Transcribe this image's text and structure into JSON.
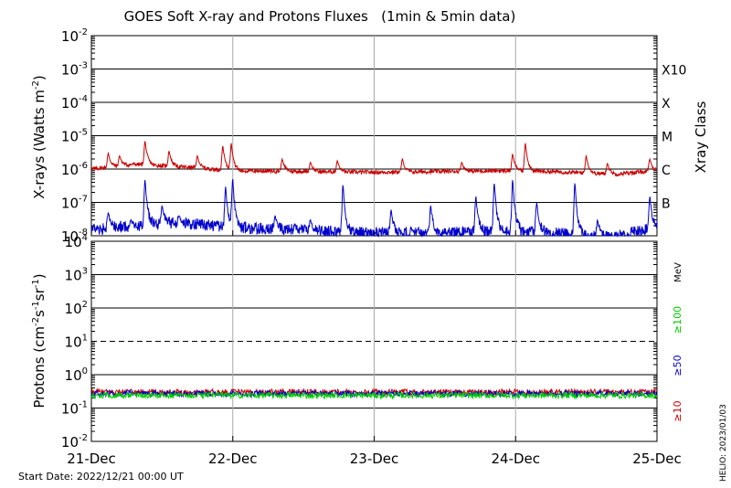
{
  "title": "GOES Soft X-ray and Protons Fluxes   (1min & 5min data)",
  "start_date": "Start Date: 2022/12/21 00:00 UT",
  "helio_stamp": "HELIO: 2023/01/03",
  "date_ticks": [
    "21-Dec",
    "22-Dec",
    "23-Dec",
    "24-Dec",
    "25-Dec"
  ],
  "chart_data": [
    {
      "type": "line",
      "panel": "xrays",
      "ylabel_main": "X-rays (Watts m",
      "ylabel_sup": "-2",
      "ylabel_tail": ")",
      "right_label": "Xray Class",
      "yscale": "log",
      "ylim_exp": [
        -8,
        -2
      ],
      "ytick_exps": [
        -2,
        -3,
        -4,
        -5,
        -6,
        -7,
        -8
      ],
      "class_labels": [
        {
          "label": "X10",
          "exp": -3
        },
        {
          "label": "X",
          "exp": -4
        },
        {
          "label": "M",
          "exp": -5
        },
        {
          "label": "C",
          "exp": -6
        },
        {
          "label": "B",
          "exp": -7
        }
      ],
      "xlim_days": [
        0,
        4
      ],
      "series": [
        {
          "color": "#cc0000",
          "baseline": [
            [
              0,
              1e-06
            ],
            [
              0.3,
              1.4e-06
            ],
            [
              0.6,
              1.2e-06
            ],
            [
              1.0,
              9e-07
            ],
            [
              1.5,
              8.5e-07
            ],
            [
              2.0,
              8e-07
            ],
            [
              2.5,
              8.5e-07
            ],
            [
              3.0,
              9e-07
            ],
            [
              3.4,
              8e-07
            ],
            [
              3.7,
              7e-07
            ],
            [
              4.0,
              9e-07
            ]
          ],
          "peaks": [
            [
              0.12,
              3e-06
            ],
            [
              0.2,
              2.5e-06
            ],
            [
              0.38,
              7e-06
            ],
            [
              0.55,
              3.5e-06
            ],
            [
              0.75,
              2.5e-06
            ],
            [
              0.93,
              5e-06
            ],
            [
              0.99,
              6e-06
            ],
            [
              1.35,
              2e-06
            ],
            [
              1.55,
              1.6e-06
            ],
            [
              1.74,
              1.8e-06
            ],
            [
              2.2,
              2e-06
            ],
            [
              2.62,
              1.6e-06
            ],
            [
              2.98,
              2.8e-06
            ],
            [
              3.07,
              6e-06
            ],
            [
              3.5,
              2.5e-06
            ],
            [
              3.65,
              1.5e-06
            ],
            [
              3.95,
              2e-06
            ]
          ]
        },
        {
          "color": "#0000cc",
          "baseline": [
            [
              0,
              1.5e-08
            ],
            [
              0.3,
              2e-08
            ],
            [
              0.6,
              2.5e-08
            ],
            [
              1.0,
              1.8e-08
            ],
            [
              1.5,
              1.5e-08
            ],
            [
              2.0,
              1.2e-08
            ],
            [
              2.5,
              1.3e-08
            ],
            [
              3.0,
              1.4e-08
            ],
            [
              3.4,
              1.1e-08
            ],
            [
              3.7,
              9e-09
            ],
            [
              4.0,
              2e-08
            ]
          ],
          "peaks": [
            [
              0.12,
              5e-08
            ],
            [
              0.28,
              3e-08
            ],
            [
              0.38,
              5e-07
            ],
            [
              0.5,
              8e-08
            ],
            [
              0.62,
              4e-08
            ],
            [
              0.95,
              3e-07
            ],
            [
              1.0,
              5e-07
            ],
            [
              1.3,
              4e-08
            ],
            [
              1.55,
              3e-08
            ],
            [
              1.78,
              3.5e-07
            ],
            [
              2.12,
              6e-08
            ],
            [
              2.4,
              8e-08
            ],
            [
              2.72,
              1.5e-07
            ],
            [
              2.85,
              4e-07
            ],
            [
              2.98,
              5e-07
            ],
            [
              3.15,
              1e-07
            ],
            [
              3.42,
              4e-07
            ],
            [
              3.58,
              3e-08
            ],
            [
              3.95,
              1.5e-07
            ]
          ]
        }
      ]
    },
    {
      "type": "line",
      "panel": "protons",
      "ylabel_main": "Protons (cm",
      "ylabel_sup1": "-2",
      "ylabel_mid1": "s",
      "ylabel_sup2": "-1",
      "ylabel_mid2": "sr",
      "ylabel_sup3": "-1",
      "ylabel_tail": ")",
      "yscale": "log",
      "ylim_exp": [
        -2,
        4
      ],
      "ytick_exps": [
        4,
        3,
        2,
        1,
        0,
        -1,
        -2
      ],
      "threshold_exp": 1,
      "unit_label": "MeV",
      "energy_labels": [
        {
          "label": "≥100",
          "color": "#00cc00"
        },
        {
          "label": "≥50",
          "color": "#0000cc"
        },
        {
          "label": "≥10",
          "color": "#cc0000"
        }
      ],
      "xlim_days": [
        0,
        4
      ],
      "series": [
        {
          "name": "≥10",
          "color": "#cc0000",
          "level": 0.3
        },
        {
          "name": "≥50",
          "color": "#0000cc",
          "level": 0.27
        },
        {
          "name": "≥100",
          "color": "#00cc00",
          "level": 0.24
        }
      ]
    }
  ]
}
